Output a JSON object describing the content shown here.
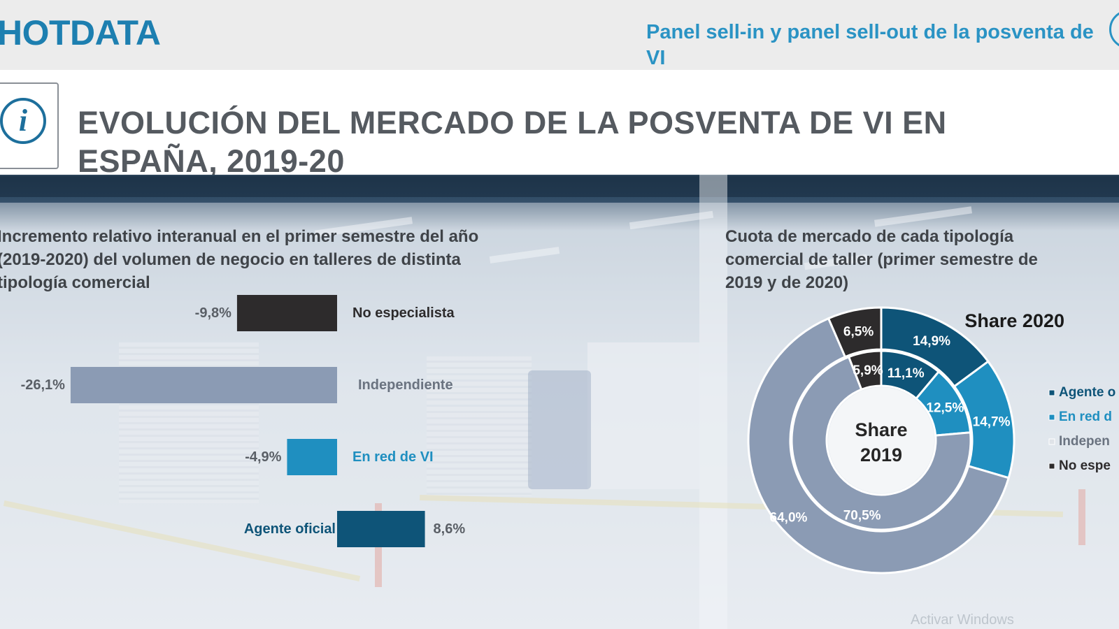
{
  "header": {
    "brand": "HOTDATA",
    "panel_title_line1": "Panel sell-in y panel sell-out de la posventa de",
    "panel_title_line2": "VI"
  },
  "title": {
    "line1": "EVOLUCIÓN DEL MERCADO DE LA POSVENTA DE VI EN",
    "line2": "ESPAÑA, 2019-20",
    "icon": "info-icon"
  },
  "left_chart_title": {
    "line1": "Incremento relativo interanual en el primer semestre del año",
    "line2": "(2019-2020) del volumen de negocio en talleres de distinta",
    "line3": "tipología comercial"
  },
  "right_chart_title": {
    "line1": "Cuota de mercado de cada tipología",
    "line2": "comercial de taller (primer semestre de",
    "line3": "2019 y de 2020)"
  },
  "watermark": "Activar Windows",
  "colors": {
    "agente": "#0e5478",
    "enred": "#1f8fc0",
    "independiente": "#8b9bb4",
    "noespecialista": "#2d2b2c"
  },
  "chart_data": [
    {
      "type": "bar",
      "orientation": "horizontal",
      "categories": [
        "No especialista",
        "Independiente",
        "En red de VI",
        "Agente oficial"
      ],
      "values": [
        -9.8,
        -26.1,
        -4.9,
        8.6
      ],
      "value_labels": [
        "-9,8%",
        "-26,1%",
        "-4,9%",
        "8,6%"
      ],
      "colors": [
        "#2d2b2c",
        "#8b9bb4",
        "#1f8fc0",
        "#0e5478"
      ],
      "label_colors": [
        "#2d2b2c",
        "#6a7380",
        "#1f8fc0",
        "#0e5478"
      ],
      "unit": "%"
    },
    {
      "type": "pie",
      "style": "donut-nested",
      "categories": [
        "Agente oficial",
        "En red de VI",
        "Independiente",
        "No especialista"
      ],
      "legend_labels": [
        "Agente o",
        "En red d",
        "Indepen",
        "No espe"
      ],
      "legend_position": "right",
      "inner_label": [
        "Share",
        "2019"
      ],
      "outer_label": "Share 2020",
      "series": [
        {
          "name": "Share 2019",
          "values": [
            11.1,
            12.5,
            70.5,
            5.9
          ],
          "labels": [
            "11,1%",
            "12,5%",
            "70,5%",
            "5,9%"
          ]
        },
        {
          "name": "Share 2020",
          "values": [
            14.9,
            14.7,
            64.0,
            6.5
          ],
          "labels": [
            "14,9%",
            "14,7%",
            "64,0%",
            "6,5%"
          ]
        }
      ]
    }
  ]
}
